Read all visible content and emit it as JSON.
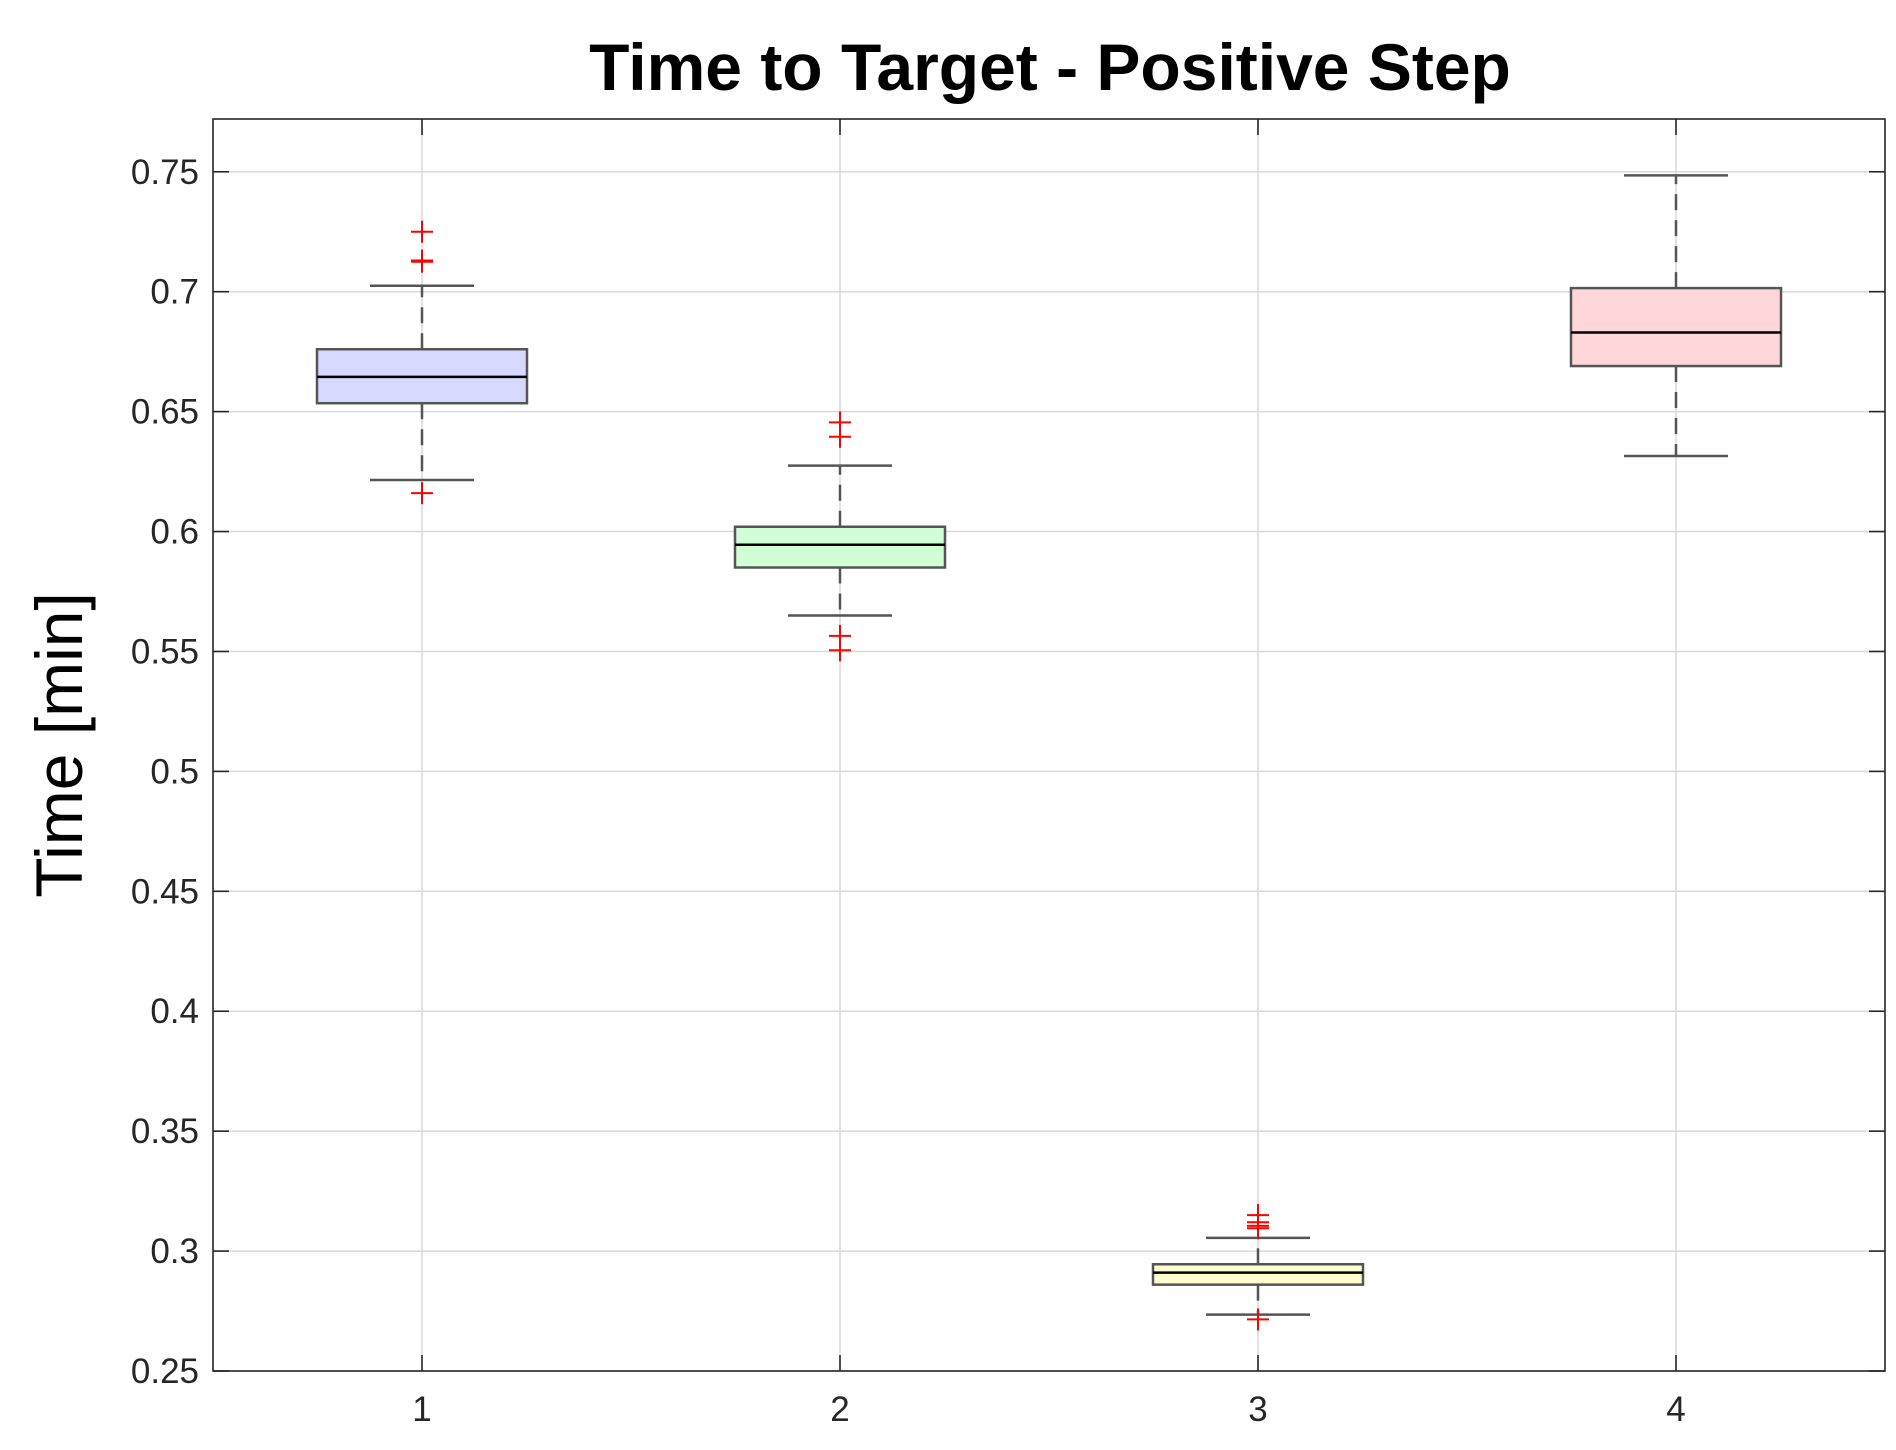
{
  "chart_data": {
    "type": "boxplot",
    "title": "Time to Target - Positive Step",
    "xlabel": "",
    "ylabel": "Time [min]",
    "categories": [
      "1",
      "2",
      "3",
      "4"
    ],
    "ylim": [
      0.25,
      0.772
    ],
    "xlim": [
      0.5,
      4.5
    ],
    "yticks": [
      "0.25",
      "0.3",
      "0.35",
      "0.4",
      "0.45",
      "0.5",
      "0.55",
      "0.6",
      "0.65",
      "0.7",
      "0.75"
    ],
    "grid": true,
    "legend": "none",
    "outlier_color": "#ff0000",
    "boxes": [
      {
        "category": "1",
        "whisker_low": 0.6215,
        "q1": 0.6535,
        "median": 0.6645,
        "q3": 0.676,
        "whisker_high": 0.7025,
        "outliers": [
          0.616,
          0.7125,
          0.713,
          0.725
        ],
        "color": "#d6d8ff"
      },
      {
        "category": "2",
        "whisker_low": 0.565,
        "q1": 0.585,
        "median": 0.5945,
        "q3": 0.602,
        "whisker_high": 0.6275,
        "outliers": [
          0.5505,
          0.5565,
          0.6395,
          0.6455
        ],
        "color": "#d0ffd6"
      },
      {
        "category": "3",
        "whisker_low": 0.2735,
        "q1": 0.286,
        "median": 0.291,
        "q3": 0.2945,
        "whisker_high": 0.3055,
        "outliers": [
          0.2715,
          0.3095,
          0.3105,
          0.312,
          0.315
        ],
        "color": "#ffffd0"
      },
      {
        "category": "4",
        "whisker_low": 0.6315,
        "q1": 0.669,
        "median": 0.683,
        "q3": 0.7015,
        "whisker_high": 0.7485,
        "outliers": [],
        "color": "#ffd6d9"
      }
    ]
  }
}
